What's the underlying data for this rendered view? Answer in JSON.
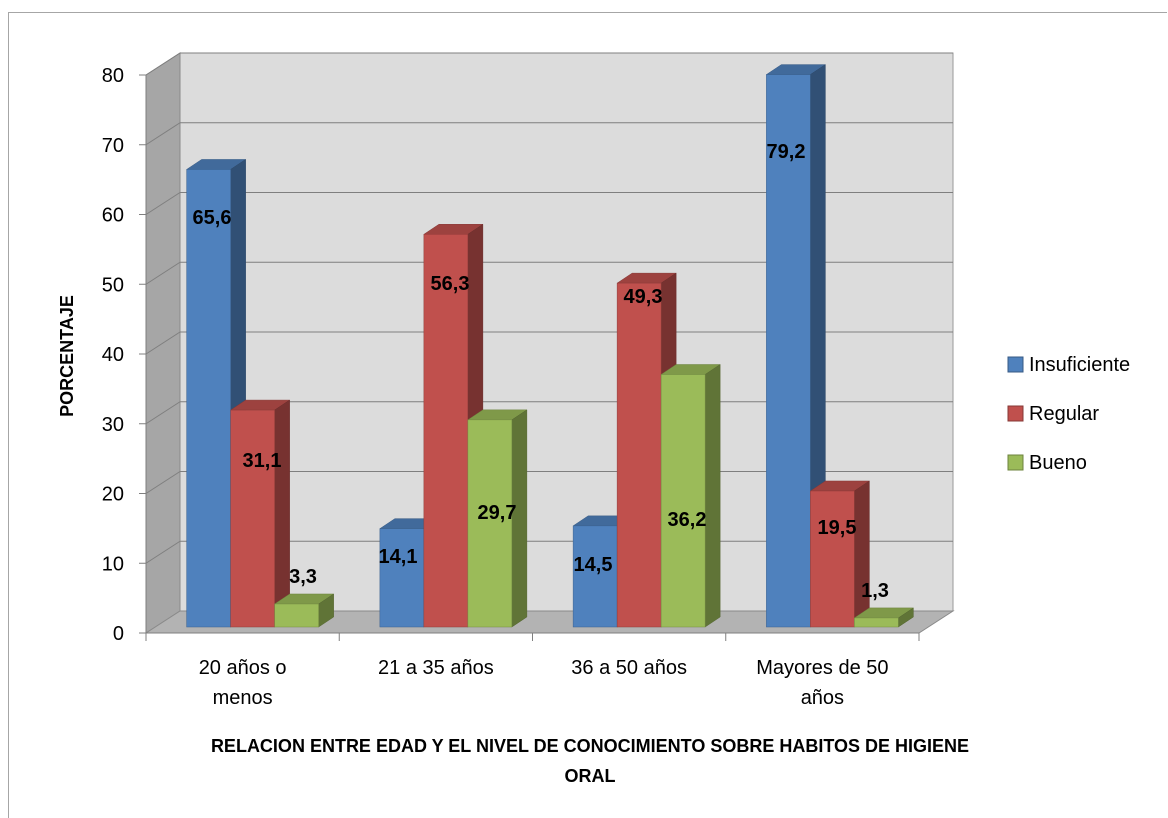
{
  "chart_data": {
    "type": "bar",
    "title": "",
    "ylabel": "PORCENTAJE",
    "xlabel_lines": [
      "RELACION ENTRE EDAD Y EL NIVEL DE CONOCIMIENTO SOBRE HABITOS DE HIGIENE",
      "ORAL"
    ],
    "ylim": [
      0,
      80
    ],
    "yticks": [
      "0",
      "10",
      "20",
      "30",
      "40",
      "50",
      "60",
      "70",
      "80"
    ],
    "categories": [
      [
        "20 años o",
        "menos"
      ],
      [
        "21 a 35 años"
      ],
      [
        "36 a 50 años"
      ],
      [
        "Mayores de 50",
        "años"
      ]
    ],
    "series": [
      {
        "name": "Insuficiente",
        "color": "#4f81bd",
        "values": [
          65.6,
          14.1,
          14.5,
          79.2
        ],
        "labels": [
          "65,6",
          "14,1",
          "14,5",
          "79,2"
        ]
      },
      {
        "name": "Regular",
        "color": "#c0504d",
        "values": [
          31.1,
          56.3,
          49.3,
          19.5
        ],
        "labels": [
          "31,1",
          "56,3",
          "49,3",
          "19,5"
        ]
      },
      {
        "name": "Bueno",
        "color": "#9bbb59",
        "values": [
          3.3,
          29.7,
          36.2,
          1.3
        ],
        "labels": [
          "3,3",
          "29,7",
          "36,2",
          "1,3"
        ]
      }
    ],
    "grid": true,
    "legend_position": "right",
    "style": "3d-clustered-column"
  }
}
